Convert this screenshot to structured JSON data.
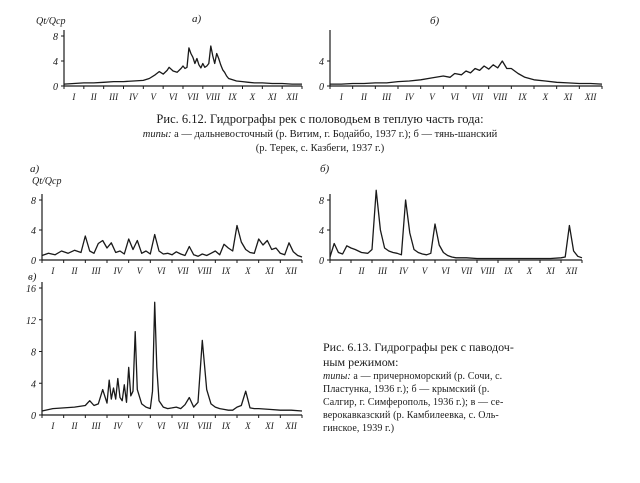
{
  "fig612": {
    "title": "Рис. 6.12. Гидрографы рек с половодьем в теплую часть года:",
    "line2_prefix": "типы:",
    "line2_rest": " а — дальневосточный (р. Витим, г. Бодайбо, 1937 г.); б — тянь-шанский",
    "line3": "(р. Терек, с. Казбеги, 1937 г.)"
  },
  "fig613": {
    "title1": "Рис. 6.13. Гидрографы рек с паводоч-",
    "title2": "ным режимом:",
    "line1_prefix": "типы:",
    "line1_rest": " а — причерноморский (р. Сочи, с.",
    "line2": "Пластунка, 1936 г.); б — крымский (р.",
    "line3": "Салгир, г. Симферополь, 1936 г.); в — се-",
    "line4": "верокавказский (р. Камбилеевка, с. Оль-",
    "line5": "гинское, 1939 г.)"
  },
  "chart_data": [
    {
      "type": "line",
      "panel_label": "а)",
      "ylabel": "Qt/Qср",
      "ylim": [
        0,
        8
      ],
      "yticks": [
        0,
        4,
        8
      ],
      "x_ticklabels": [
        "I",
        "II",
        "III",
        "IV",
        "V",
        "VI",
        "VII",
        "VIII",
        "IX",
        "X",
        "XI",
        "XII"
      ],
      "x": [
        0,
        0.5,
        1,
        1.5,
        2,
        2.5,
        3,
        3.5,
        4,
        4.3,
        4.6,
        4.8,
        5.0,
        5.2,
        5.3,
        5.5,
        5.7,
        5.9,
        6.0,
        6.1,
        6.2,
        6.3,
        6.4,
        6.5,
        6.6,
        6.7,
        6.8,
        6.9,
        7.0,
        7.1,
        7.2,
        7.3,
        7.4,
        7.5,
        7.6,
        7.7,
        7.8,
        7.9,
        8.0,
        8.1,
        8.2,
        8.3,
        8.5,
        8.7,
        9.0,
        9.3,
        9.6,
        10,
        10.5,
        11,
        11.5,
        12
      ],
      "values": [
        0.3,
        0.4,
        0.5,
        0.5,
        0.6,
        0.7,
        0.7,
        0.8,
        0.9,
        1.2,
        1.8,
        2.3,
        1.9,
        2.5,
        3.0,
        2.4,
        2.2,
        2.8,
        3.2,
        2.8,
        3.0,
        6.1,
        5.2,
        4.6,
        3.6,
        4.4,
        3.4,
        2.9,
        3.6,
        3.0,
        3.2,
        3.6,
        6.4,
        4.8,
        3.6,
        5.2,
        4.4,
        3.4,
        2.6,
        2.2,
        1.6,
        1.2,
        1.0,
        0.8,
        0.7,
        0.6,
        0.5,
        0.5,
        0.4,
        0.4,
        0.3,
        0.3
      ]
    },
    {
      "type": "line",
      "panel_label": "б)",
      "ylim": [
        0,
        8
      ],
      "yticks": [
        0,
        4
      ],
      "x_ticklabels": [
        "I",
        "II",
        "III",
        "IV",
        "V",
        "VI",
        "VII",
        "VIII",
        "IX",
        "X",
        "XI",
        "XII"
      ],
      "x": [
        0,
        0.5,
        1,
        1.5,
        2,
        2.5,
        3,
        3.5,
        4,
        4.5,
        5,
        5.3,
        5.5,
        5.8,
        6,
        6.2,
        6.4,
        6.6,
        6.8,
        7,
        7.2,
        7.4,
        7.6,
        7.8,
        8,
        8.3,
        8.6,
        9,
        9.5,
        10,
        10.5,
        11,
        11.5,
        12
      ],
      "values": [
        0.3,
        0.3,
        0.4,
        0.4,
        0.5,
        0.5,
        0.7,
        0.8,
        1.0,
        1.3,
        1.6,
        1.4,
        2.0,
        1.8,
        2.4,
        2.1,
        2.8,
        2.5,
        3.2,
        2.7,
        3.4,
        2.9,
        4.0,
        2.8,
        2.8,
        2.0,
        1.4,
        1.0,
        0.8,
        0.6,
        0.5,
        0.4,
        0.4,
        0.3
      ]
    },
    {
      "type": "line",
      "panel_label": "а)",
      "ylabel": "Qt/Qср",
      "ylim": [
        0,
        8
      ],
      "yticks": [
        0,
        4,
        8
      ],
      "x_ticklabels": [
        "I",
        "II",
        "III",
        "IV",
        "V",
        "VI",
        "VII",
        "VIII",
        "IX",
        "X",
        "XI",
        "XII"
      ],
      "x": [
        0,
        0.3,
        0.6,
        0.9,
        1.2,
        1.5,
        1.8,
        2.0,
        2.2,
        2.4,
        2.6,
        2.8,
        3.0,
        3.2,
        3.4,
        3.6,
        3.8,
        4.0,
        4.2,
        4.4,
        4.6,
        4.8,
        5.0,
        5.2,
        5.4,
        5.6,
        5.8,
        6.0,
        6.2,
        6.4,
        6.6,
        6.8,
        7.0,
        7.2,
        7.4,
        7.6,
        7.8,
        8.0,
        8.2,
        8.4,
        8.6,
        8.8,
        9.0,
        9.2,
        9.4,
        9.6,
        9.8,
        10.0,
        10.2,
        10.4,
        10.6,
        10.8,
        11.0,
        11.2,
        11.4,
        11.6,
        11.8,
        12.0
      ],
      "values": [
        0.6,
        0.9,
        0.7,
        1.2,
        0.9,
        1.3,
        1.0,
        3.2,
        1.2,
        0.9,
        2.2,
        2.6,
        1.6,
        2.3,
        1.0,
        1.2,
        0.8,
        2.8,
        1.4,
        2.6,
        0.9,
        1.2,
        0.8,
        3.4,
        1.2,
        0.8,
        0.9,
        0.7,
        1.1,
        0.8,
        0.6,
        1.8,
        0.7,
        0.5,
        0.8,
        0.6,
        0.9,
        1.2,
        0.7,
        2.1,
        1.6,
        1.2,
        4.6,
        2.4,
        1.4,
        1.0,
        0.9,
        2.8,
        2.0,
        2.6,
        1.4,
        1.6,
        0.9,
        0.7,
        2.3,
        1.1,
        0.6,
        0.4
      ]
    },
    {
      "type": "line",
      "panel_label": "б)",
      "ylim": [
        0,
        8
      ],
      "yticks": [
        0,
        4,
        8
      ],
      "x_ticklabels": [
        "I",
        "II",
        "III",
        "IV",
        "V",
        "VI",
        "VII",
        "VIII",
        "IX",
        "X",
        "XI",
        "XII"
      ],
      "x": [
        0,
        0.2,
        0.4,
        0.6,
        0.8,
        1.0,
        1.2,
        1.5,
        1.8,
        2.0,
        2.2,
        2.4,
        2.6,
        2.8,
        3.0,
        3.2,
        3.4,
        3.6,
        3.8,
        4.0,
        4.2,
        4.4,
        4.6,
        4.8,
        5.0,
        5.2,
        5.4,
        5.6,
        5.8,
        6.0,
        6.5,
        7.0,
        7.5,
        8.0,
        8.5,
        9.0,
        9.5,
        10.0,
        10.5,
        11.0,
        11.2,
        11.4,
        11.6,
        11.8,
        12.0
      ],
      "values": [
        0.4,
        2.2,
        1.0,
        0.8,
        1.9,
        1.6,
        1.4,
        1.0,
        0.9,
        1.4,
        9.3,
        4.0,
        1.6,
        1.2,
        1.0,
        0.9,
        0.7,
        8.0,
        3.6,
        1.4,
        1.0,
        0.8,
        0.7,
        0.9,
        4.8,
        2.0,
        1.0,
        0.6,
        0.4,
        0.3,
        0.3,
        0.2,
        0.2,
        0.2,
        0.2,
        0.2,
        0.2,
        0.2,
        0.2,
        0.3,
        0.4,
        4.6,
        1.2,
        0.5,
        0.3
      ]
    },
    {
      "type": "line",
      "panel_label": "в)",
      "ylim": [
        0,
        16
      ],
      "yticks": [
        0,
        4,
        8,
        12,
        16
      ],
      "x_ticklabels": [
        "I",
        "II",
        "III",
        "IV",
        "V",
        "VI",
        "VII",
        "VIII",
        "IX",
        "X",
        "XI",
        "XII"
      ],
      "x": [
        0,
        0.5,
        1,
        1.5,
        2.0,
        2.2,
        2.4,
        2.6,
        2.8,
        3.0,
        3.1,
        3.2,
        3.3,
        3.4,
        3.5,
        3.6,
        3.7,
        3.8,
        3.9,
        4.0,
        4.1,
        4.2,
        4.3,
        4.4,
        4.6,
        4.8,
        5.0,
        5.1,
        5.2,
        5.3,
        5.4,
        5.6,
        5.8,
        6.0,
        6.2,
        6.4,
        6.6,
        6.8,
        7.0,
        7.2,
        7.4,
        7.6,
        7.8,
        8.0,
        8.2,
        8.4,
        8.6,
        8.8,
        9.0,
        9.2,
        9.4,
        9.6,
        9.8,
        10.0,
        10.5,
        11.0,
        11.5,
        12.0
      ],
      "values": [
        0.5,
        0.8,
        0.9,
        1.0,
        1.2,
        1.8,
        1.2,
        1.4,
        3.2,
        1.5,
        4.4,
        2.0,
        3.4,
        2.0,
        4.6,
        2.2,
        1.8,
        3.8,
        1.6,
        6.0,
        2.4,
        3.0,
        10.5,
        3.2,
        1.4,
        1.0,
        0.8,
        3.0,
        14.2,
        6.0,
        1.8,
        1.0,
        0.8,
        0.9,
        1.0,
        0.8,
        1.3,
        2.2,
        1.0,
        1.6,
        9.4,
        3.2,
        1.4,
        1.0,
        0.8,
        0.7,
        0.6,
        0.6,
        1.0,
        1.2,
        3.0,
        0.9,
        0.8,
        0.8,
        0.7,
        0.6,
        0.6,
        0.5
      ]
    }
  ]
}
